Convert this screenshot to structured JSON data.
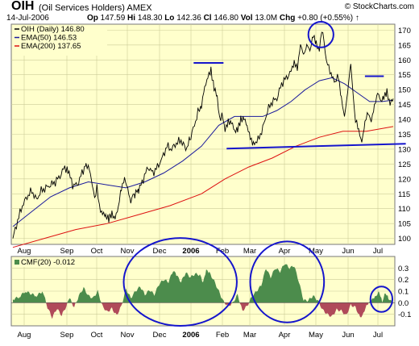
{
  "header": {
    "symbol": "OIH",
    "name": "(Oil Services Holders) AMEX",
    "copyright": "© StockCharts.com",
    "date": "14-Jul-2006",
    "op_label": "Op",
    "op": "147.59",
    "hi_label": "Hi",
    "hi": "148.30",
    "lo_label": "Lo",
    "lo": "142.36",
    "cl_label": "Cl",
    "cl": "146.80",
    "vol_label": "Vol",
    "vol": "13.0M",
    "chg_label": "Chg",
    "chg": "+0.80 (+0.55%)",
    "chg_arrow": "↑"
  },
  "colors": {
    "background": "#ffffcc",
    "price": "#000000",
    "ema50": "#1a1a9c",
    "ema200": "#dd1111",
    "cmf_pos": "#4c8c4c",
    "cmf_neg": "#b04a5a",
    "annotation": "#1515cc"
  },
  "chart_data": [
    {
      "type": "line",
      "title": "OIH (Daily) 146.80",
      "ylim": [
        98,
        172
      ],
      "y_ticks": [
        "100",
        "105",
        "110",
        "115",
        "120",
        "125",
        "130",
        "135",
        "140",
        "145",
        "150",
        "155",
        "160",
        "165",
        "170"
      ],
      "x_ticks": [
        "Aug",
        "Sep",
        "Oct",
        "Nov",
        "Dec",
        "2006",
        "Feb",
        "Mar",
        "Apr",
        "May",
        "Jun",
        "Jul"
      ],
      "legend": [
        {
          "label": "OIH (Daily) 146.80",
          "color": "#000000"
        },
        {
          "label": "EMA(50) 146.53",
          "color": "#1a1a9c"
        },
        {
          "label": "EMA(200) 137.65",
          "color": "#dd1111"
        }
      ],
      "series": [
        {
          "name": "OIH (Daily) 146.80",
          "points": [
            [
              0,
              100
            ],
            [
              6,
              106
            ],
            [
              12,
              111
            ],
            [
              18,
              114
            ],
            [
              24,
              116
            ],
            [
              30,
              113
            ],
            [
              36,
              116
            ],
            [
              42,
              117
            ],
            [
              48,
              118
            ],
            [
              54,
              119
            ],
            [
              60,
              121
            ],
            [
              66,
              124
            ],
            [
              70,
              123
            ],
            [
              76,
              118
            ],
            [
              82,
              118
            ],
            [
              88,
              122
            ],
            [
              93,
              125
            ],
            [
              97,
              124
            ],
            [
              101,
              118
            ],
            [
              104,
              113
            ],
            [
              107,
              118
            ],
            [
              110,
              110
            ],
            [
              114,
              109
            ],
            [
              118,
              108
            ],
            [
              122,
              106
            ],
            [
              126,
              108
            ],
            [
              130,
              107
            ],
            [
              134,
              111
            ],
            [
              138,
              116
            ],
            [
              142,
              120
            ],
            [
              146,
              117
            ],
            [
              150,
              113
            ],
            [
              155,
              115
            ],
            [
              160,
              116
            ],
            [
              166,
              120
            ],
            [
              172,
              124
            ],
            [
              178,
              122
            ],
            [
              184,
              124
            ],
            [
              190,
              127
            ],
            [
              196,
              131
            ],
            [
              202,
              130
            ],
            [
              208,
              132
            ],
            [
              214,
              133
            ],
            [
              220,
              130
            ],
            [
              225,
              133
            ],
            [
              231,
              138
            ],
            [
              236,
              143
            ],
            [
              240,
              145
            ],
            [
              244,
              150
            ],
            [
              248,
              154
            ],
            [
              252,
              157
            ],
            [
              256,
              151
            ],
            [
              260,
              147
            ],
            [
              263,
              140
            ],
            [
              266,
              142
            ],
            [
              270,
              136
            ],
            [
              274,
              139
            ],
            [
              278,
              140
            ],
            [
              282,
              136
            ],
            [
              286,
              136
            ],
            [
              290,
              140
            ],
            [
              294,
              141
            ],
            [
              298,
              138
            ],
            [
              302,
              133
            ],
            [
              306,
              132
            ],
            [
              312,
              133
            ],
            [
              318,
              137
            ],
            [
              324,
              143
            ],
            [
              330,
              146
            ],
            [
              336,
              147
            ],
            [
              342,
              152
            ],
            [
              348,
              154
            ],
            [
              354,
              156
            ],
            [
              358,
              160
            ],
            [
              362,
              157
            ],
            [
              366,
              165
            ],
            [
              370,
              161
            ],
            [
              374,
              166
            ],
            [
              378,
              163
            ],
            [
              382,
              168
            ],
            [
              386,
              165
            ],
            [
              390,
              164
            ],
            [
              393,
              170
            ],
            [
              396,
              166
            ],
            [
              399,
              160
            ],
            [
              402,
              157
            ],
            [
              406,
              155
            ],
            [
              410,
              153
            ],
            [
              414,
              154
            ],
            [
              418,
              147
            ],
            [
              422,
              141
            ],
            [
              426,
              150
            ],
            [
              430,
              158
            ],
            [
              433,
              148
            ],
            [
              436,
              140
            ],
            [
              440,
              136
            ],
            [
              444,
              132
            ],
            [
              448,
              140
            ],
            [
              452,
              142
            ],
            [
              456,
              139
            ],
            [
              460,
              144
            ],
            [
              464,
              150
            ],
            [
              468,
              146
            ],
            [
              472,
              147
            ],
            [
              476,
              149
            ],
            [
              480,
              146
            ],
            [
              484,
              147
            ]
          ]
        },
        {
          "name": "EMA(50) 146.53",
          "points": [
            [
              0,
              104
            ],
            [
              24,
              109
            ],
            [
              48,
              114
            ],
            [
              72,
              117
            ],
            [
              96,
              119
            ],
            [
              120,
              118
            ],
            [
              144,
              117
            ],
            [
              168,
              119
            ],
            [
              192,
              122
            ],
            [
              216,
              126
            ],
            [
              240,
              131
            ],
            [
              262,
              138
            ],
            [
              282,
              141
            ],
            [
              300,
              141
            ],
            [
              318,
              141
            ],
            [
              336,
              143
            ],
            [
              354,
              146
            ],
            [
              372,
              150
            ],
            [
              390,
              153
            ],
            [
              406,
              154
            ],
            [
              422,
              152
            ],
            [
              438,
              149
            ],
            [
              454,
              146
            ],
            [
              470,
              146
            ],
            [
              484,
              146.5
            ]
          ]
        },
        {
          "name": "EMA(200) 137.65",
          "points": [
            [
              0,
              97
            ],
            [
              40,
              100
            ],
            [
              80,
              103
            ],
            [
              120,
              105
            ],
            [
              160,
              108
            ],
            [
              200,
              111
            ],
            [
              240,
              115
            ],
            [
              270,
              120
            ],
            [
              300,
              124
            ],
            [
              330,
              127
            ],
            [
              360,
              131
            ],
            [
              390,
              134
            ],
            [
              420,
              136
            ],
            [
              450,
              136
            ],
            [
              484,
              137.6
            ]
          ]
        }
      ]
    },
    {
      "type": "area",
      "title": "CMF(20) -0.012",
      "ylim": [
        -0.2,
        0.4
      ],
      "y_ticks": [
        "-0.1",
        "0.0",
        "0.1",
        "0.2",
        "0.3"
      ],
      "x_ticks": [
        "Aug",
        "Sep",
        "Oct",
        "Nov",
        "Dec",
        "2006",
        "Feb",
        "Mar",
        "Apr",
        "May",
        "Jun",
        "Jul"
      ],
      "series": [
        {
          "name": "CMF(20) -0.012",
          "points": [
            [
              0,
              0.03
            ],
            [
              8,
              0.05
            ],
            [
              16,
              0.1
            ],
            [
              22,
              0.08
            ],
            [
              30,
              0.06
            ],
            [
              38,
              0.1
            ],
            [
              44,
              -0.04
            ],
            [
              50,
              -0.13
            ],
            [
              56,
              -0.05
            ],
            [
              62,
              -0.11
            ],
            [
              68,
              -0.03
            ],
            [
              72,
              0.04
            ],
            [
              78,
              -0.04
            ],
            [
              84,
              0.06
            ],
            [
              90,
              0.13
            ],
            [
              96,
              0.06
            ],
            [
              102,
              0.04
            ],
            [
              108,
              0.1
            ],
            [
              114,
              -0.03
            ],
            [
              120,
              -0.08
            ],
            [
              126,
              -0.05
            ],
            [
              132,
              -0.11
            ],
            [
              138,
              -0.03
            ],
            [
              144,
              0.12
            ],
            [
              150,
              0.04
            ],
            [
              156,
              0.1
            ],
            [
              162,
              0.14
            ],
            [
              168,
              0.07
            ],
            [
              174,
              0.11
            ],
            [
              180,
              0.07
            ],
            [
              186,
              0.16
            ],
            [
              192,
              0.2
            ],
            [
              198,
              0.18
            ],
            [
              204,
              0.28
            ],
            [
              208,
              0.24
            ],
            [
              214,
              0.18
            ],
            [
              220,
              0.26
            ],
            [
              226,
              0.22
            ],
            [
              232,
              0.25
            ],
            [
              238,
              0.24
            ],
            [
              242,
              0.17
            ],
            [
              246,
              0.28
            ],
            [
              250,
              0.26
            ],
            [
              256,
              0.19
            ],
            [
              262,
              0.1
            ],
            [
              268,
              0.01
            ],
            [
              274,
              -0.03
            ],
            [
              280,
              0.0
            ],
            [
              286,
              0.07
            ],
            [
              292,
              -0.07
            ],
            [
              298,
              -0.03
            ],
            [
              304,
              0.05
            ],
            [
              310,
              0.1
            ],
            [
              316,
              0.15
            ],
            [
              322,
              0.3
            ],
            [
              328,
              0.22
            ],
            [
              334,
              0.3
            ],
            [
              340,
              0.27
            ],
            [
              346,
              0.34
            ],
            [
              352,
              0.3
            ],
            [
              358,
              0.32
            ],
            [
              364,
              0.18
            ],
            [
              370,
              0.02
            ],
            [
              376,
              0.02
            ],
            [
              382,
              0.06
            ],
            [
              388,
              0.02
            ],
            [
              394,
              -0.06
            ],
            [
              400,
              -0.1
            ],
            [
              406,
              -0.12
            ],
            [
              412,
              -0.06
            ],
            [
              418,
              -0.07
            ],
            [
              424,
              -0.11
            ],
            [
              430,
              -0.02
            ],
            [
              436,
              -0.04
            ],
            [
              442,
              -0.13
            ],
            [
              446,
              -0.09
            ],
            [
              450,
              -0.02
            ],
            [
              454,
              0.01
            ],
            [
              458,
              0.04
            ],
            [
              462,
              0.06
            ],
            [
              466,
              0.1
            ],
            [
              470,
              0.01
            ],
            [
              474,
              0.09
            ],
            [
              478,
              0.04
            ],
            [
              484,
              -0.01
            ]
          ]
        }
      ]
    }
  ],
  "annotations": [
    {
      "kind": "ellipse",
      "panel": "price",
      "x": 392,
      "y": 168.5,
      "rx": 16,
      "ry": 4.3
    },
    {
      "kind": "segment",
      "panel": "price",
      "x1": 230,
      "y1": 159,
      "x2": 268,
      "y2": 159
    },
    {
      "kind": "segment",
      "panel": "price",
      "x1": 448,
      "y1": 154.5,
      "x2": 472,
      "y2": 154.5
    },
    {
      "kind": "segment",
      "panel": "price",
      "x1": 272,
      "y1": 130.2,
      "x2": 500,
      "y2": 131.8
    },
    {
      "kind": "ellipse",
      "panel": "cmf",
      "x": 213,
      "y": 0.18,
      "rx": 72,
      "ry": 0.38
    },
    {
      "kind": "ellipse",
      "panel": "cmf",
      "x": 349,
      "y": 0.18,
      "rx": 47,
      "ry": 0.35
    },
    {
      "kind": "ellipse",
      "panel": "cmf",
      "x": 469,
      "y": 0.03,
      "rx": 14,
      "ry": 0.11
    }
  ]
}
